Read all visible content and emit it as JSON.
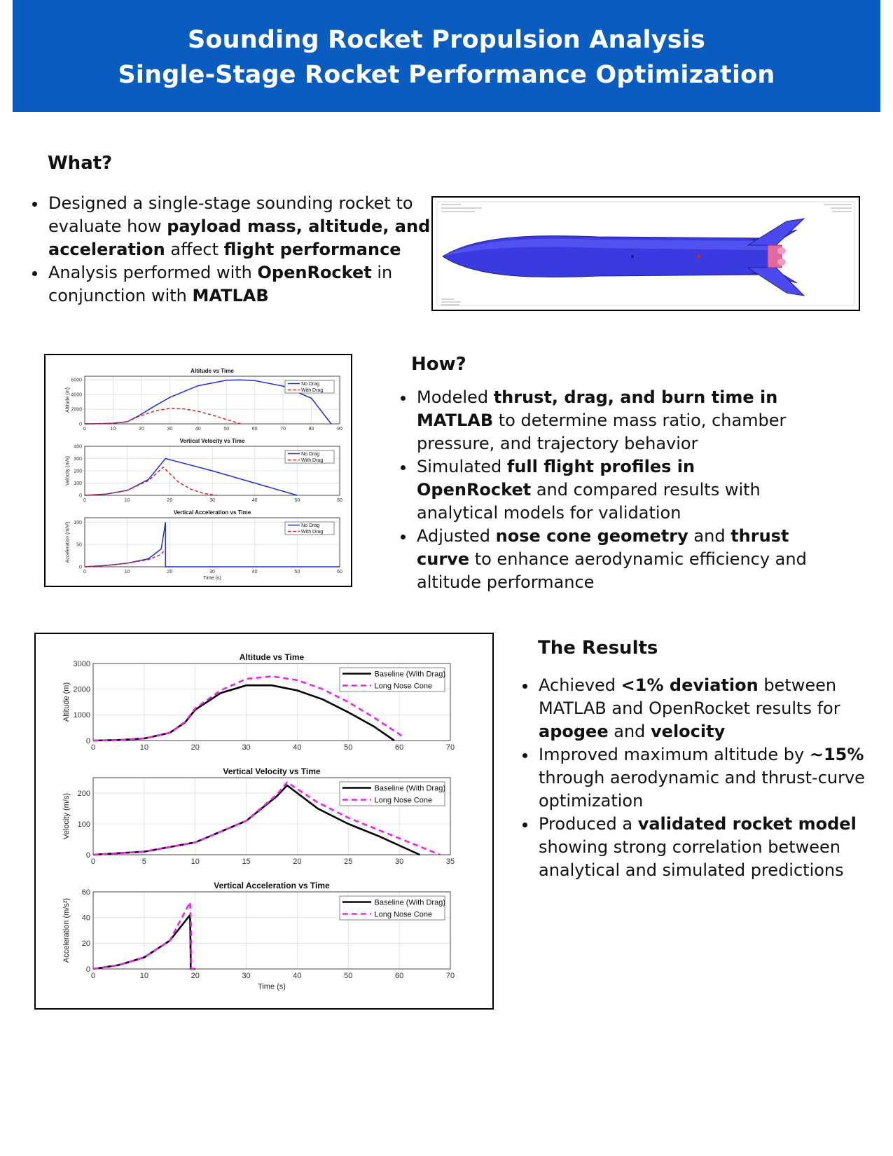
{
  "header": {
    "line1": "Sounding Rocket Propulsion Analysis",
    "line2": "Single-Stage Rocket Performance Optimization",
    "bg_color": "#0a5cbf"
  },
  "what": {
    "title": "What?",
    "bullets": [
      [
        {
          "t": "Designed a single-stage sounding rocket to evaluate how "
        },
        {
          "t": "payload mass, altitude, and acceleration",
          "b": true
        },
        {
          "t": " affect "
        },
        {
          "t": "flight performance",
          "b": true
        }
      ],
      [
        {
          "t": "Analysis performed with "
        },
        {
          "t": "OpenRocket",
          "b": true
        },
        {
          "t": " in conjunction with "
        },
        {
          "t": "MATLAB",
          "b": true
        }
      ]
    ]
  },
  "how": {
    "title": "How?",
    "bullets": [
      [
        {
          "t": "Modeled "
        },
        {
          "t": "thrust, drag, and burn time in MATLAB",
          "b": true
        },
        {
          "t": " to determine mass ratio, chamber pressure, and trajectory behavior"
        }
      ],
      [
        {
          "t": "Simulated "
        },
        {
          "t": "full flight profiles in OpenRocket",
          "b": true
        },
        {
          "t": " and compared results with analytical models for validation"
        }
      ],
      [
        {
          "t": "Adjusted "
        },
        {
          "t": "nose cone geometry",
          "b": true
        },
        {
          "t": " and "
        },
        {
          "t": "thrust curve",
          "b": true
        },
        {
          "t": " to enhance aerodynamic efficiency and altitude performance"
        }
      ]
    ]
  },
  "results": {
    "title": "The Results",
    "bullets": [
      [
        {
          "t": " Achieved "
        },
        {
          "t": "<1% deviation",
          "b": true
        },
        {
          "t": " between MATLAB and OpenRocket results for "
        },
        {
          "t": "apogee",
          "b": true
        },
        {
          "t": " and "
        },
        {
          "t": "velocity",
          "b": true
        }
      ],
      [
        {
          "t": "Improved maximum altitude by "
        },
        {
          "t": "~15%",
          "b": true
        },
        {
          "t": " through aerodynamic and thrust-curve optimization"
        }
      ],
      [
        {
          "t": "Produced a "
        },
        {
          "t": "validated rocket model",
          "b": true
        },
        {
          "t": " showing strong correlation between analytical and simulated predictions"
        }
      ]
    ]
  },
  "rocket_figure": {
    "body_color": "#3a3ae0",
    "motor_color": "#e06aa0"
  },
  "chart_data": [
    {
      "type": "line",
      "title": "Altitude vs Time",
      "ylabel": "Altitude (m)",
      "xlim": [
        0,
        90
      ],
      "ylim": [
        0,
        6500
      ],
      "xticks": [
        0,
        10,
        20,
        30,
        40,
        50,
        60,
        70,
        80,
        90
      ],
      "yticks": [
        0,
        2000,
        4000,
        6000
      ],
      "series": [
        {
          "name": "No Drag",
          "color": "#1f2fd0",
          "dash": false,
          "x": [
            0,
            5,
            10,
            15,
            19,
            25,
            30,
            40,
            50,
            55,
            60,
            70,
            80,
            87
          ],
          "y": [
            0,
            20,
            90,
            300,
            1100,
            2500,
            3600,
            5200,
            5950,
            6000,
            5900,
            5150,
            3500,
            0
          ]
        },
        {
          "name": "With Drag",
          "color": "#e02020",
          "dash": true,
          "x": [
            0,
            5,
            10,
            15,
            19,
            25,
            30,
            35,
            40,
            45,
            50,
            55
          ],
          "y": [
            0,
            20,
            90,
            300,
            1000,
            1800,
            2100,
            2050,
            1700,
            1200,
            600,
            0
          ]
        }
      ]
    },
    {
      "type": "line",
      "title": "Vertical Velocity vs Time",
      "ylabel": "Velocity (m/s)",
      "xlim": [
        0,
        60
      ],
      "ylim": [
        0,
        400
      ],
      "xticks": [
        0,
        10,
        20,
        30,
        40,
        50,
        60
      ],
      "yticks": [
        0,
        100,
        200,
        300,
        400
      ],
      "series": [
        {
          "name": "No Drag",
          "color": "#1f2fd0",
          "dash": false,
          "x": [
            0,
            5,
            10,
            15,
            19,
            30,
            40,
            50
          ],
          "y": [
            0,
            10,
            40,
            130,
            300,
            200,
            100,
            0
          ]
        },
        {
          "name": "With Drag",
          "color": "#e02020",
          "dash": true,
          "x": [
            0,
            5,
            10,
            15,
            18.5,
            22,
            25,
            28,
            31
          ],
          "y": [
            0,
            10,
            40,
            120,
            230,
            110,
            50,
            15,
            0
          ]
        }
      ]
    },
    {
      "type": "line",
      "title": "Vertical Acceleration vs Time",
      "ylabel": "Acceleration (m/s²)",
      "xlabel": "Time (s)",
      "xlim": [
        0,
        60
      ],
      "ylim": [
        0,
        110
      ],
      "xticks": [
        0,
        10,
        20,
        30,
        40,
        50,
        60
      ],
      "yticks": [
        0,
        50,
        100
      ],
      "series": [
        {
          "name": "No Drag",
          "color": "#1f2fd0",
          "dash": false,
          "x": [
            0,
            5,
            10,
            15,
            18,
            19,
            19,
            60
          ],
          "y": [
            0,
            3,
            8,
            18,
            40,
            100,
            0,
            0
          ]
        },
        {
          "name": "With Drag",
          "color": "#e02020",
          "dash": true,
          "x": [
            0,
            5,
            10,
            15,
            18,
            19
          ],
          "y": [
            0,
            3,
            8,
            16,
            28,
            40
          ]
        }
      ]
    },
    {
      "type": "line",
      "title": "Altitude vs Time",
      "ylabel": "Altitude (m)",
      "xlim": [
        0,
        70
      ],
      "ylim": [
        0,
        3000
      ],
      "xticks": [
        0,
        10,
        20,
        30,
        40,
        50,
        60,
        70
      ],
      "yticks": [
        0,
        1000,
        2000,
        3000
      ],
      "series": [
        {
          "name": "Baseline (With Drag)",
          "color": "#000000",
          "dash": false,
          "x": [
            0,
            5,
            10,
            15,
            18,
            20,
            25,
            30,
            35,
            40,
            45,
            50,
            55,
            59
          ],
          "y": [
            0,
            20,
            80,
            300,
            700,
            1200,
            1850,
            2150,
            2150,
            1950,
            1600,
            1100,
            550,
            0
          ]
        },
        {
          "name": "Long Nose Cone",
          "color": "#ee22ee",
          "dash": true,
          "x": [
            0,
            5,
            10,
            15,
            18,
            20,
            25,
            30,
            35,
            40,
            45,
            50,
            55,
            60,
            61
          ],
          "y": [
            0,
            20,
            80,
            300,
            720,
            1250,
            1950,
            2400,
            2500,
            2350,
            2000,
            1500,
            900,
            250,
            100
          ]
        }
      ]
    },
    {
      "type": "line",
      "title": "Vertical Velocity vs Time",
      "ylabel": "Velocity (m/s)",
      "xlim": [
        0,
        35
      ],
      "ylim": [
        0,
        250
      ],
      "xticks": [
        0,
        5,
        10,
        15,
        20,
        25,
        30,
        35
      ],
      "yticks": [
        0,
        100,
        200
      ],
      "series": [
        {
          "name": "Baseline (With Drag)",
          "color": "#000000",
          "dash": false,
          "x": [
            0,
            5,
            10,
            15,
            18,
            19,
            22,
            25,
            28,
            32
          ],
          "y": [
            0,
            10,
            40,
            110,
            190,
            225,
            150,
            100,
            60,
            0
          ]
        },
        {
          "name": "Long Nose Cone",
          "color": "#ee22ee",
          "dash": true,
          "x": [
            0,
            5,
            10,
            15,
            18,
            19,
            22,
            25,
            28,
            31,
            34
          ],
          "y": [
            0,
            10,
            40,
            110,
            195,
            235,
            170,
            120,
            80,
            40,
            0
          ]
        }
      ]
    },
    {
      "type": "line",
      "title": "Vertical Acceleration vs Time",
      "ylabel": "Acceleration (m/s²)",
      "xlabel": "Time (s)",
      "xlim": [
        0,
        70
      ],
      "ylim": [
        0,
        60
      ],
      "xticks": [
        0,
        10,
        20,
        30,
        40,
        50,
        60,
        70
      ],
      "yticks": [
        0,
        20,
        40,
        60
      ],
      "series": [
        {
          "name": "Baseline (With Drag)",
          "color": "#000000",
          "dash": false,
          "x": [
            0,
            5,
            10,
            15,
            19,
            19.1,
            19.1,
            20
          ],
          "y": [
            0,
            3,
            9,
            22,
            42,
            10,
            0,
            0
          ]
        },
        {
          "name": "Long Nose Cone",
          "color": "#ee22ee",
          "dash": true,
          "x": [
            0,
            5,
            10,
            15,
            19,
            19.2,
            19.2,
            20
          ],
          "y": [
            0,
            3,
            9,
            22,
            52,
            30,
            0,
            0
          ]
        }
      ]
    }
  ]
}
